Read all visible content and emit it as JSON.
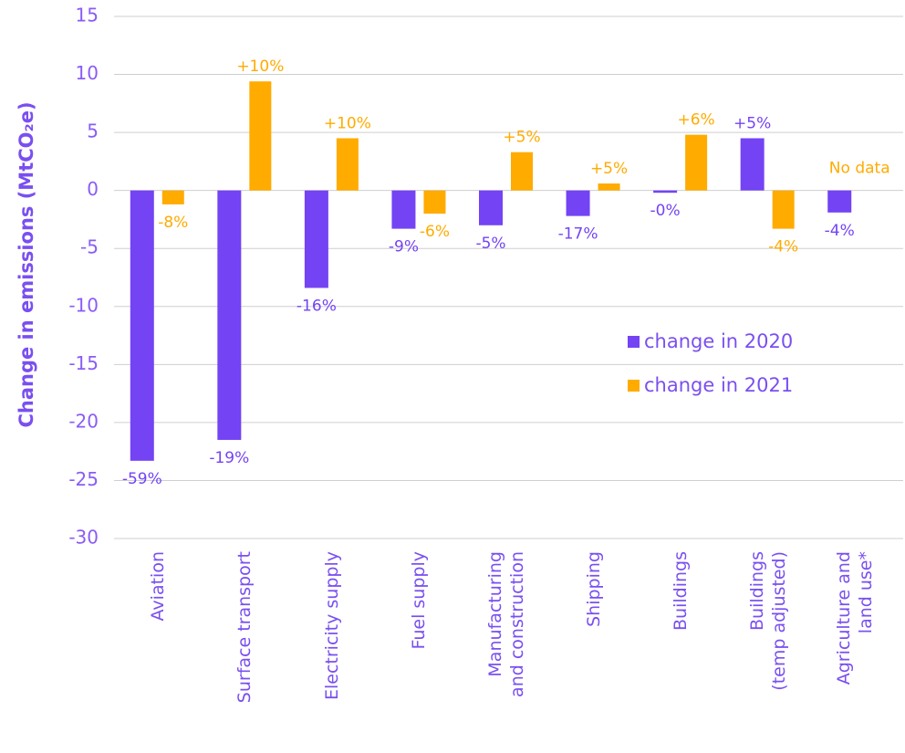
{
  "chart_data": {
    "type": "bar",
    "y_axis_label": "Change in emissions (MtCO₂e)",
    "categories": [
      "Aviation",
      "Surface transport",
      "Electricity supply",
      "Fuel supply",
      "Manufacturing\nand construction",
      "Shipping",
      "Buildings",
      "Buildings\n(temp adjusted)",
      "Agriculture and\nland use*"
    ],
    "series": [
      {
        "name": "change in 2020",
        "color": "#7443f4",
        "values": [
          -23.3,
          -21.5,
          -8.4,
          -3.3,
          -3.0,
          -2.2,
          -0.2,
          4.5,
          -1.9
        ],
        "percent_labels": [
          "-59%",
          "-19%",
          "-16%",
          "-9%",
          "-5%",
          "-17%",
          "-0%",
          "+5%",
          "-4%"
        ]
      },
      {
        "name": "change in 2021",
        "color": "#ffab00",
        "values": [
          -1.2,
          9.4,
          4.5,
          -2.0,
          3.3,
          0.6,
          4.8,
          -3.3,
          null
        ],
        "percent_labels": [
          "-8%",
          "+10%",
          "+10%",
          "-6%",
          "+5%",
          "+5%",
          "+6%",
          "-4%",
          "No data"
        ]
      }
    ],
    "ylim": [
      -30,
      15
    ],
    "yticks": [
      -30,
      -25,
      -20,
      -15,
      -10,
      -5,
      0,
      5,
      10,
      15
    ],
    "grid": true
  }
}
